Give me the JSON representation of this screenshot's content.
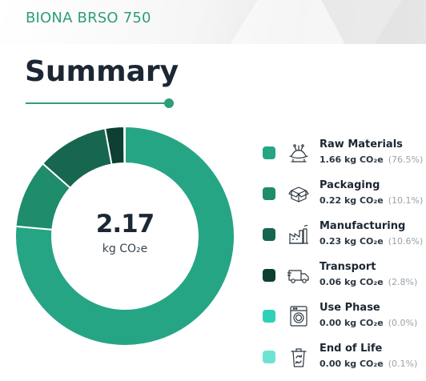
{
  "header": {
    "product_name": "BIONA BRSO 750"
  },
  "summary": {
    "title": "Summary"
  },
  "total": {
    "value": "2.17",
    "unit": "kg CO₂e"
  },
  "colors": {
    "accent": "#2e9e77",
    "raw_materials": "#26a585",
    "packaging": "#1f8c6c",
    "manufacturing": "#17664f",
    "transport": "#0e3f33",
    "use_phase": "#2fd0b8",
    "end_of_life": "#6fe3d3"
  },
  "chart_data": {
    "type": "pie",
    "style": "donut",
    "title": "Summary",
    "total": 2.17,
    "unit": "kg CO₂e",
    "categories": [
      "Raw Materials",
      "Packaging",
      "Manufacturing",
      "Transport",
      "Use Phase",
      "End of Life"
    ],
    "values": [
      1.66,
      0.22,
      0.23,
      0.06,
      0.0,
      0.0
    ],
    "percentages": [
      76.5,
      10.1,
      10.6,
      2.8,
      0.0,
      0.1
    ],
    "colors": [
      "#26a585",
      "#1f8c6c",
      "#17664f",
      "#0e3f33",
      "#2fd0b8",
      "#6fe3d3"
    ],
    "legend_position": "right"
  },
  "legend": {
    "items": [
      {
        "name": "Raw Materials",
        "value": "1.66 kg CO₂e",
        "pct": "(76.5%)",
        "icon": "raw-materials-icon",
        "color": "#26a585"
      },
      {
        "name": "Packaging",
        "value": "0.22 kg CO₂e",
        "pct": "(10.1%)",
        "icon": "packaging-box-icon",
        "color": "#1f8c6c"
      },
      {
        "name": "Manufacturing",
        "value": "0.23 kg CO₂e",
        "pct": "(10.6%)",
        "icon": "factory-icon",
        "color": "#17664f"
      },
      {
        "name": "Transport",
        "value": "0.06 kg CO₂e",
        "pct": "(2.8%)",
        "icon": "truck-icon",
        "color": "#0e3f33"
      },
      {
        "name": "Use Phase",
        "value": "0.00 kg CO₂e",
        "pct": "(0.0%)",
        "icon": "washing-machine-icon",
        "color": "#2fd0b8"
      },
      {
        "name": "End of Life",
        "value": "0.00 kg CO₂e",
        "pct": "(0.1%)",
        "icon": "recycle-bin-icon",
        "color": "#6fe3d3"
      }
    ]
  }
}
